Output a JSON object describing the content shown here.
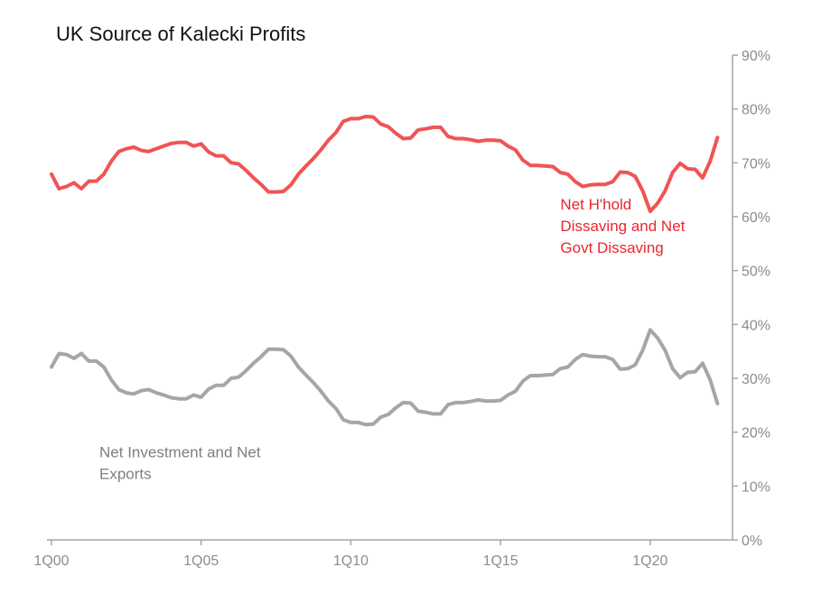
{
  "chart_data": {
    "type": "line",
    "title": "UK Source of Kalecki Profits",
    "xlabel": "",
    "ylabel": "",
    "x_start": "1Q00",
    "x_step": "quarter",
    "x_ticks": [
      {
        "label": "1Q00",
        "x": 2000
      },
      {
        "label": "1Q05",
        "x": 2005
      },
      {
        "label": "1Q10",
        "x": 2010
      },
      {
        "label": "1Q15",
        "x": 2015
      },
      {
        "label": "1Q20",
        "x": 2020
      }
    ],
    "xlim": [
      2000,
      2022.75
    ],
    "ylim": [
      0,
      90
    ],
    "y_ticks": [
      {
        "label": "0%",
        "v": 0
      },
      {
        "label": "10%",
        "v": 10
      },
      {
        "label": "20%",
        "v": 20
      },
      {
        "label": "30%",
        "v": 30
      },
      {
        "label": "40%",
        "v": 40
      },
      {
        "label": "50%",
        "v": 50
      },
      {
        "label": "60%",
        "v": 60
      },
      {
        "label": "70%",
        "v": 70
      },
      {
        "label": "80%",
        "v": 80
      },
      {
        "label": "90%",
        "v": 90
      }
    ],
    "grid": false,
    "series": [
      {
        "name": "",
        "color": "#f05454",
        "values": [
          67.9,
          65.2,
          65.6,
          66.3,
          65.2,
          66.6,
          66.6,
          67.9,
          70.3,
          72.1,
          72.6,
          72.9,
          72.3,
          72.1,
          72.6,
          73.1,
          73.6,
          73.8,
          73.8,
          73.1,
          73.5,
          72.0,
          71.3,
          71.3,
          70.0,
          69.8,
          68.6,
          67.2,
          66.0,
          64.6,
          64.6,
          64.7,
          65.9,
          67.9,
          69.4,
          70.8,
          72.4,
          74.2,
          75.6,
          77.7,
          78.2,
          78.2,
          78.6,
          78.5,
          77.2,
          76.7,
          75.5,
          74.5,
          74.6,
          76.1,
          76.3,
          76.6,
          76.6,
          74.9,
          74.5,
          74.5,
          74.3,
          74.0,
          74.2,
          74.2,
          74.1,
          73.1,
          72.4,
          70.5,
          69.5,
          69.5,
          69.4,
          69.3,
          68.2,
          67.9,
          66.5,
          65.6,
          65.9,
          66.0,
          66.0,
          66.5,
          68.3,
          68.2,
          67.5,
          64.8,
          61.0,
          62.5,
          64.8,
          68.2,
          69.9,
          68.9,
          68.8,
          67.2,
          70.2,
          74.7
        ]
      },
      {
        "name": "",
        "color": "#a6a6a6",
        "values": [
          32.1,
          34.6,
          34.4,
          33.7,
          34.6,
          33.2,
          33.2,
          32.1,
          29.7,
          27.9,
          27.3,
          27.1,
          27.7,
          27.9,
          27.3,
          26.9,
          26.4,
          26.2,
          26.2,
          26.9,
          26.5,
          28.0,
          28.7,
          28.7,
          30.0,
          30.2,
          31.4,
          32.8,
          34.0,
          35.4,
          35.4,
          35.3,
          34.1,
          32.1,
          30.6,
          29.2,
          27.6,
          25.8,
          24.4,
          22.3,
          21.8,
          21.8,
          21.4,
          21.5,
          22.8,
          23.3,
          24.5,
          25.5,
          25.4,
          23.9,
          23.7,
          23.4,
          23.4,
          25.1,
          25.5,
          25.5,
          25.7,
          26.0,
          25.8,
          25.8,
          25.9,
          26.9,
          27.6,
          29.5,
          30.5,
          30.5,
          30.6,
          30.7,
          31.8,
          32.1,
          33.5,
          34.4,
          34.1,
          34.0,
          34.0,
          33.5,
          31.7,
          31.8,
          32.5,
          35.2,
          39.0,
          37.5,
          35.2,
          31.8,
          30.1,
          31.1,
          31.2,
          32.8,
          29.8,
          25.3
        ]
      }
    ],
    "annotations": [
      {
        "lines": [
          "Net H'hold",
          "Dissaving and Net",
          "Govt Dissaving"
        ],
        "color": "#e8272d",
        "anchor_x": 2017.0,
        "anchor_y": 61.3
      },
      {
        "lines": [
          "Net Investment  and Net",
          "Exports"
        ],
        "color": "#7f7f7f",
        "anchor_x": 2001.6,
        "anchor_y": 15.3
      }
    ]
  }
}
